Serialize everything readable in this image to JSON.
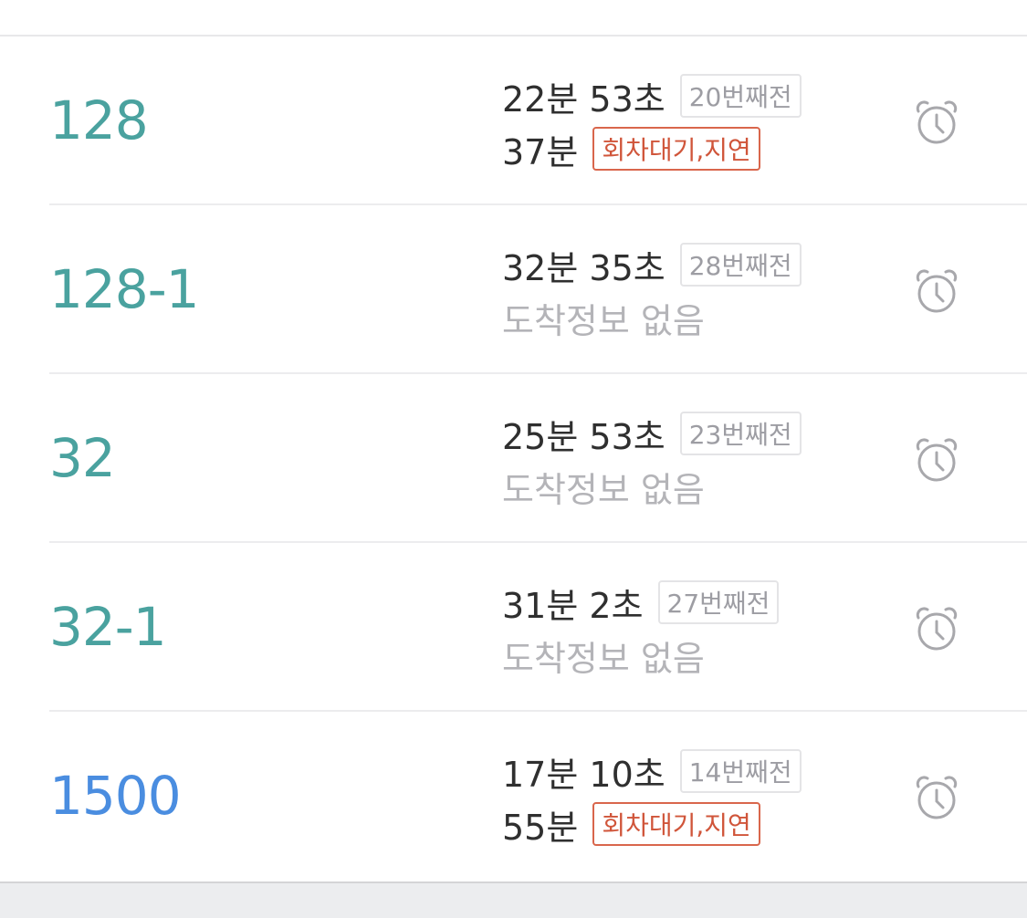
{
  "colors": {
    "route_teal": "#4aa29f",
    "route_blue": "#4a8de0",
    "status_red": "#d0553a",
    "muted": "#b4b4b8"
  },
  "rows": [
    {
      "route": "128",
      "first": "22분 53초",
      "first_stops": "20번째전",
      "second": "37분",
      "second_status": "회차대기,지연",
      "alarm_icon": "alarm-clock-icon"
    },
    {
      "route": "128-1",
      "first": "32분 35초",
      "first_stops": "28번째전",
      "second": "도착정보 없음",
      "alarm_icon": "alarm-clock-icon"
    },
    {
      "route": "32",
      "first": "25분 53초",
      "first_stops": "23번째전",
      "second": "도착정보 없음",
      "alarm_icon": "alarm-clock-icon"
    },
    {
      "route": "32-1",
      "first": "31분 2초",
      "first_stops": "27번째전",
      "second": "도착정보 없음",
      "alarm_icon": "alarm-clock-icon"
    },
    {
      "route": "1500",
      "first": "17분 10초",
      "first_stops": "14번째전",
      "second": "55분",
      "second_status": "회차대기,지연",
      "alarm_icon": "alarm-clock-icon"
    }
  ]
}
